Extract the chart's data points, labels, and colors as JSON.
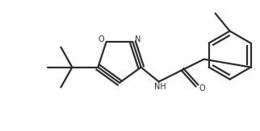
{
  "bg_color": "#ffffff",
  "line_color": "#2b2b2b",
  "line_width": 1.6,
  "figsize": [
    3.22,
    1.63
  ],
  "dpi": 100,
  "xlim": [
    0,
    322
  ],
  "ylim": [
    0,
    163
  ]
}
